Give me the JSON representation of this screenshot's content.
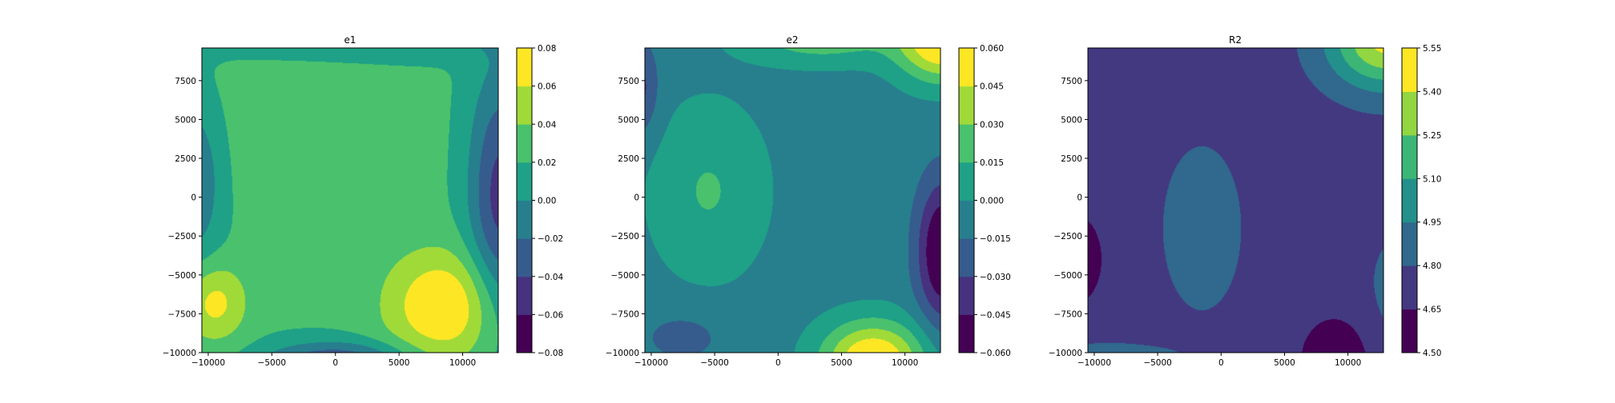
{
  "chart_data": [
    {
      "type": "contour",
      "title": "e1",
      "xlim": [
        -10500,
        12800
      ],
      "ylim": [
        -10000,
        9600
      ],
      "x_ticks": [
        -10000,
        -5000,
        0,
        5000,
        10000
      ],
      "x_tick_labels": [
        "−10000",
        "−5000",
        "0",
        "5000",
        "10000"
      ],
      "y_ticks": [
        -10000,
        -7500,
        -5000,
        -2500,
        0,
        2500,
        5000,
        7500
      ],
      "y_tick_labels": [
        "−10000",
        "−7500",
        "−5000",
        "−2500",
        "0",
        "2500",
        "5000",
        "7500"
      ],
      "colorbar": {
        "levels": [
          -0.08,
          -0.06,
          -0.04,
          -0.02,
          0.0,
          0.02,
          0.04,
          0.06,
          0.08
        ],
        "tick_labels": [
          "−0.08",
          "−0.06",
          "−0.04",
          "−0.02",
          "0.00",
          "0.02",
          "0.04",
          "0.06",
          "0.08"
        ]
      },
      "field": {
        "base": 0.022,
        "bumps": [
          {
            "x": 8500,
            "y": -7000,
            "sx": 4500,
            "sy": 3500,
            "a": 0.06
          },
          {
            "x": -9500,
            "y": -6800,
            "sx": 2500,
            "sy": 2500,
            "a": 0.045
          },
          {
            "x": -2000,
            "y": 3000,
            "sx": 8000,
            "sy": 6000,
            "a": 0.012
          },
          {
            "x": 13000,
            "y": 0,
            "sx": 2500,
            "sy": 8000,
            "a": -0.07
          },
          {
            "x": -11500,
            "y": 1000,
            "sx": 2500,
            "sy": 5000,
            "a": -0.05
          },
          {
            "x": 0,
            "y": -10500,
            "sx": 5500,
            "sy": 1200,
            "a": -0.06
          },
          {
            "x": 2000,
            "y": 10500,
            "sx": 12000,
            "sy": 1500,
            "a": -0.03
          }
        ]
      }
    },
    {
      "type": "contour",
      "title": "e2",
      "xlim": [
        -10500,
        12800
      ],
      "ylim": [
        -10000,
        9600
      ],
      "x_ticks": [
        -10000,
        -5000,
        0,
        5000,
        10000
      ],
      "x_tick_labels": [
        "−10000",
        "−5000",
        "0",
        "5000",
        "10000"
      ],
      "y_ticks": [
        -10000,
        -7500,
        -5000,
        -2500,
        0,
        2500,
        5000,
        7500
      ],
      "y_tick_labels": [
        "−10000",
        "−7500",
        "−5000",
        "−2500",
        "0",
        "2500",
        "5000",
        "7500"
      ],
      "colorbar": {
        "levels": [
          -0.06,
          -0.045,
          -0.03,
          -0.015,
          0.0,
          0.015,
          0.03,
          0.045,
          0.06
        ],
        "tick_labels": [
          "−0.060",
          "−0.045",
          "−0.030",
          "−0.015",
          "0.000",
          "0.015",
          "0.030",
          "0.045",
          "0.060"
        ]
      },
      "field": {
        "base": -0.006,
        "bumps": [
          {
            "x": -5500,
            "y": 400,
            "sx": 4500,
            "sy": 5500,
            "a": 0.022
          },
          {
            "x": 7500,
            "y": -10500,
            "sx": 4000,
            "sy": 2500,
            "a": 0.07
          },
          {
            "x": 13000,
            "y": 10000,
            "sx": 3500,
            "sy": 2500,
            "a": 0.07
          },
          {
            "x": 3500,
            "y": 10500,
            "sx": 6000,
            "sy": 1800,
            "a": 0.035
          },
          {
            "x": 13000,
            "y": -3500,
            "sx": 2000,
            "sy": 4500,
            "a": -0.06
          },
          {
            "x": -11000,
            "y": 7000,
            "sx": 1500,
            "sy": 3000,
            "a": -0.03
          },
          {
            "x": -7500,
            "y": -9000,
            "sx": 3500,
            "sy": 1800,
            "a": -0.015
          }
        ]
      }
    },
    {
      "type": "contour",
      "title": "R2",
      "xlim": [
        -10500,
        12800
      ],
      "ylim": [
        -10000,
        9600
      ],
      "x_ticks": [
        -10000,
        -5000,
        0,
        5000,
        10000
      ],
      "x_tick_labels": [
        "−10000",
        "−5000",
        "0",
        "5000",
        "10000"
      ],
      "y_ticks": [
        -10000,
        -7500,
        -5000,
        -2500,
        0,
        2500,
        5000,
        7500
      ],
      "y_tick_labels": [
        "−10000",
        "−7500",
        "−5000",
        "−2500",
        "0",
        "2500",
        "5000",
        "7500"
      ],
      "colorbar": {
        "levels": [
          4.5,
          4.65,
          4.8,
          4.95,
          5.1,
          5.25,
          5.4,
          5.55
        ],
        "tick_labels": [
          "4.50",
          "4.65",
          "4.80",
          "4.95",
          "5.10",
          "5.25",
          "5.40",
          "5.55"
        ]
      },
      "field": {
        "base": 4.74,
        "bumps": [
          {
            "x": -1500,
            "y": -2000,
            "sx": 3500,
            "sy": 6000,
            "a": 0.13
          },
          {
            "x": 13000,
            "y": 10000,
            "sx": 4500,
            "sy": 3000,
            "a": 0.7
          },
          {
            "x": -11500,
            "y": -4000,
            "sx": 2200,
            "sy": 3000,
            "a": -0.22
          },
          {
            "x": 9000,
            "y": -10500,
            "sx": 3000,
            "sy": 3000,
            "a": -0.2
          },
          {
            "x": -9500,
            "y": -10500,
            "sx": 6000,
            "sy": 1200,
            "a": 0.15
          },
          {
            "x": 14000,
            "y": -6000,
            "sx": 2500,
            "sy": 4000,
            "a": 0.12
          }
        ]
      }
    }
  ]
}
